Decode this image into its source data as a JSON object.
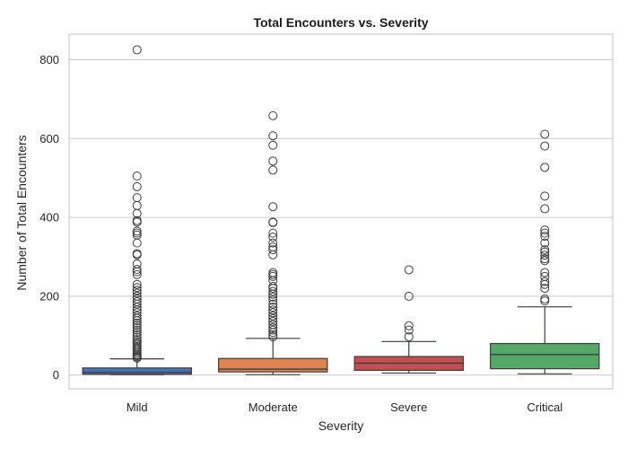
{
  "chart_data": {
    "type": "box",
    "title": "Total Encounters vs. Severity",
    "xlabel": "Severity",
    "ylabel": "Number of Total Encounters",
    "ylim": [
      -35,
      865
    ],
    "yticks": [
      0,
      200,
      400,
      600,
      800
    ],
    "grid": "horizontal",
    "categories": [
      "Mild",
      "Moderate",
      "Severe",
      "Critical"
    ],
    "colors": [
      "#4c72b0",
      "#dd8452",
      "#c44e52",
      "#55a868"
    ],
    "boxes": [
      {
        "category": "Mild",
        "whisker_low": 1,
        "q1": 2,
        "median": 7,
        "q3": 18,
        "whisker_high": 41,
        "fliers": [
          825,
          505,
          478,
          450,
          430,
          410,
          392,
          388,
          365,
          360,
          355,
          335,
          308,
          305,
          282,
          268,
          262,
          255,
          230,
          222,
          215,
          208,
          200,
          193,
          186,
          180,
          172,
          165,
          158,
          150,
          144,
          138,
          132,
          126,
          120,
          114,
          108,
          102,
          96,
          90,
          85,
          80,
          76,
          72,
          68,
          64,
          60,
          56,
          52,
          49,
          46,
          43
        ]
      },
      {
        "category": "Moderate",
        "whisker_low": 1,
        "q1": 8,
        "median": 15,
        "q3": 42,
        "whisker_high": 93,
        "fliers": [
          658,
          607,
          583,
          543,
          520,
          427,
          388,
          387,
          360,
          350,
          335,
          325,
          318,
          305,
          260,
          255,
          250,
          240,
          225,
          220,
          212,
          205,
          198,
          190,
          180,
          172,
          165,
          158,
          150,
          143,
          136,
          128,
          120,
          114,
          108,
          102,
          97
        ]
      },
      {
        "category": "Severe",
        "whisker_low": 5,
        "q1": 12,
        "median": 30,
        "q3": 47,
        "whisker_high": 85,
        "fliers": [
          267,
          200,
          125,
          114,
          97
        ]
      },
      {
        "category": "Critical",
        "whisker_low": 3,
        "q1": 16,
        "median": 52,
        "q3": 80,
        "whisker_high": 173,
        "fliers": [
          611,
          581,
          527,
          454,
          422,
          368,
          360,
          352,
          335,
          318,
          312,
          304,
          295,
          290,
          260,
          250,
          237,
          230,
          220,
          193,
          188
        ]
      }
    ]
  }
}
